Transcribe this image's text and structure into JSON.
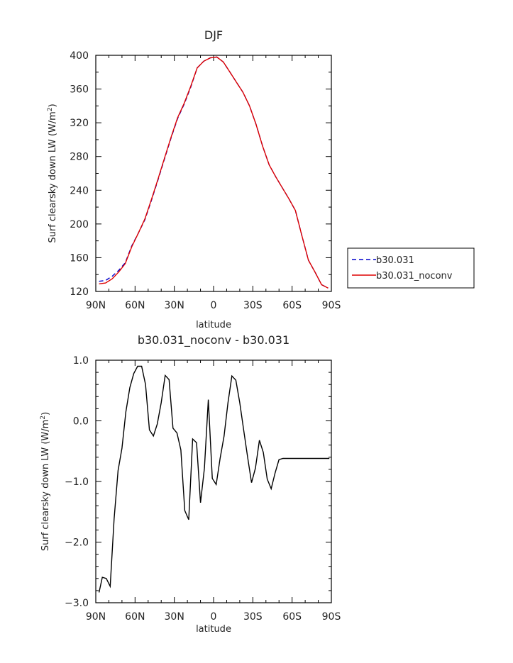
{
  "chart_data": [
    {
      "type": "line",
      "title": "DJF",
      "xlabel": "latitude",
      "ylabel": "Surf clearsky down LW (W/m",
      "ylabel_sup": "2",
      "ylabel_tail": ")",
      "xlim": [
        -90,
        90
      ],
      "ylim": [
        120,
        400
      ],
      "x_ticks": [
        -90,
        -60,
        -30,
        0,
        30,
        60,
        90
      ],
      "x_tick_labels": [
        "90N",
        "60N",
        "30N",
        "0",
        "30S",
        "60S",
        "90S"
      ],
      "y_ticks": [
        120,
        160,
        200,
        240,
        280,
        320,
        360,
        400
      ],
      "y_tick_labels": [
        "120",
        "160",
        "200",
        "240",
        "280",
        "320",
        "360",
        "400"
      ],
      "legend_position": "outside-right",
      "series": [
        {
          "name": "b30.031",
          "color": "#0000cc",
          "dash": true,
          "x": [
            -87.5,
            -82.5,
            -77.5,
            -72.5,
            -67.5,
            -62.5,
            -57.5,
            -52.5,
            -47.5,
            -42.5,
            -37.5,
            -32.5,
            -27.5,
            -22.5,
            -17.5,
            -12.5,
            -7.5,
            -2.5,
            2.5,
            7.5,
            12.5,
            17.5,
            22.5,
            27.5,
            32.5,
            37.5,
            42.5,
            47.5,
            52.5,
            57.5,
            62.5,
            67.5,
            72.5,
            77.5,
            82.5,
            87.5
          ],
          "y": [
            132,
            133,
            138,
            145,
            154,
            174,
            189,
            205,
            228,
            252,
            277,
            302,
            325,
            342,
            362,
            385,
            393,
            397,
            398,
            392,
            380,
            368,
            356,
            340,
            318,
            292,
            270,
            256,
            243,
            230,
            216,
            186,
            157,
            143,
            128,
            124
          ]
        },
        {
          "name": "b30.031_noconv",
          "color": "#dd0000",
          "dash": false,
          "x": [
            -87.5,
            -82.5,
            -77.5,
            -72.5,
            -67.5,
            -62.5,
            -57.5,
            -52.5,
            -47.5,
            -42.5,
            -37.5,
            -32.5,
            -27.5,
            -22.5,
            -17.5,
            -12.5,
            -7.5,
            -2.5,
            2.5,
            7.5,
            12.5,
            17.5,
            22.5,
            27.5,
            32.5,
            37.5,
            42.5,
            47.5,
            52.5,
            57.5,
            62.5,
            67.5,
            72.5,
            77.5,
            82.5,
            87.5
          ],
          "y": [
            129,
            130,
            135,
            143,
            153,
            173,
            189,
            206,
            229,
            253,
            278,
            303,
            326,
            343,
            363,
            385,
            393,
            397,
            398,
            392,
            380,
            368,
            356,
            340,
            318,
            292,
            270,
            256,
            243,
            230,
            216,
            186,
            157,
            143,
            128,
            124
          ]
        }
      ]
    },
    {
      "type": "line",
      "title": "b30.031_noconv - b30.031",
      "xlabel": "latitude",
      "ylabel": "Surf clearsky down LW (W/m",
      "ylabel_sup": "2",
      "ylabel_tail": ")",
      "xlim": [
        -90,
        90
      ],
      "ylim": [
        -3.0,
        1.0
      ],
      "x_ticks": [
        -90,
        -60,
        -30,
        0,
        30,
        60,
        90
      ],
      "x_tick_labels": [
        "90N",
        "60N",
        "30N",
        "0",
        "30S",
        "60S",
        "90S"
      ],
      "y_ticks": [
        -3.0,
        -2.0,
        -1.0,
        0.0,
        1.0
      ],
      "y_tick_labels": [
        "−3.0",
        "−2.0",
        "−1.0",
        "0.0",
        "1.0"
      ],
      "series": [
        {
          "color": "#000000",
          "dash": false,
          "x": [
            -87.5,
            -85,
            -82,
            -79,
            -76,
            -73,
            -70,
            -67,
            -64,
            -61,
            -58,
            -55,
            -52,
            -49,
            -46,
            -43,
            -40,
            -37,
            -34,
            -31,
            -28,
            -25,
            -22,
            -19,
            -16,
            -13,
            -10,
            -7,
            -4,
            -1,
            2,
            5,
            8,
            11,
            14,
            17,
            20,
            23,
            26,
            29,
            32,
            35,
            38,
            41,
            44,
            47,
            50,
            53,
            56,
            59,
            62,
            65,
            68,
            71,
            74,
            77,
            80,
            83,
            86,
            88.5
          ],
          "y": [
            -2.83,
            -2.58,
            -2.6,
            -2.73,
            -1.62,
            -0.82,
            -0.45,
            0.15,
            0.55,
            0.78,
            0.9,
            0.9,
            0.6,
            -0.15,
            -0.25,
            -0.05,
            0.3,
            0.75,
            0.68,
            -0.12,
            -0.2,
            -0.48,
            -1.48,
            -1.63,
            -0.3,
            -0.36,
            -1.35,
            -0.78,
            0.35,
            -0.95,
            -1.05,
            -0.62,
            -0.25,
            0.3,
            0.74,
            0.67,
            0.3,
            -0.15,
            -0.6,
            -1.02,
            -0.78,
            -0.32,
            -0.52,
            -0.96,
            -1.12,
            -0.86,
            -0.64,
            -0.62,
            -0.62,
            -0.62,
            -0.62,
            -0.62,
            -0.62,
            -0.62,
            -0.62,
            -0.62,
            -0.62,
            -0.62,
            -0.62,
            -0.62
          ]
        }
      ]
    }
  ]
}
